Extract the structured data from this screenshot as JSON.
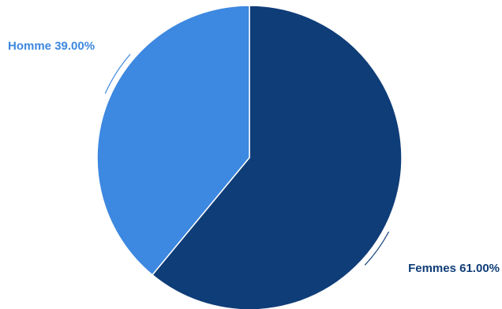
{
  "chart_data": {
    "type": "pie",
    "slices": [
      {
        "label": "Femmes",
        "value": 61.0,
        "percent_label": "61.00%",
        "color": "#0f3d78",
        "label_color": "#0f3d78"
      },
      {
        "label": "Homme",
        "value": 39.0,
        "percent_label": "39.00%",
        "color": "#3d88e0",
        "label_color": "#3d88e0"
      }
    ],
    "start_angle": "12 o'clock",
    "direction": "clockwise",
    "legend": "none"
  }
}
